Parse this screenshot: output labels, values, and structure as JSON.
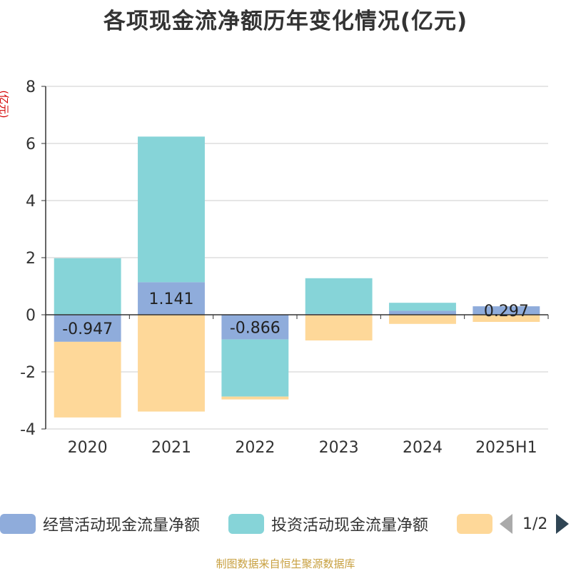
{
  "title": "各项现金流净额历年变化情况(亿元)",
  "unit_label": "(亿元)",
  "source": "制图数据来自恒生聚源数据库",
  "legend_pager": "1/2",
  "chart_data": {
    "type": "bar",
    "stacked": true,
    "categories": [
      "2020",
      "2021",
      "2022",
      "2023",
      "2024",
      "2025H1"
    ],
    "ylim": [
      -4,
      8
    ],
    "yticks": [
      "-4",
      "-2",
      "0",
      "2",
      "4",
      "6",
      "8"
    ],
    "grid": true,
    "legend_position": "bottom",
    "series": [
      {
        "name": "经营活动现金流量净额",
        "color": "#8facdb",
        "values": [
          -0.947,
          1.141,
          -0.866,
          0.03,
          0.14,
          0.297
        ],
        "labels": [
          "-0.947",
          "1.141",
          "-0.866",
          "",
          "",
          "0.297"
        ]
      },
      {
        "name": "投资活动现金流量净额",
        "color": "#86d4d8",
        "values": [
          1.98,
          5.1,
          -2.0,
          1.25,
          0.28,
          0.0
        ],
        "labels": [
          "",
          "",
          "",
          "",
          "",
          ""
        ]
      },
      {
        "name": "",
        "color": "#fed899",
        "values": [
          -2.65,
          -3.39,
          -0.1,
          -0.9,
          -0.32,
          -0.25
        ],
        "labels": [
          "",
          "",
          "",
          "",
          "",
          ""
        ]
      }
    ]
  }
}
